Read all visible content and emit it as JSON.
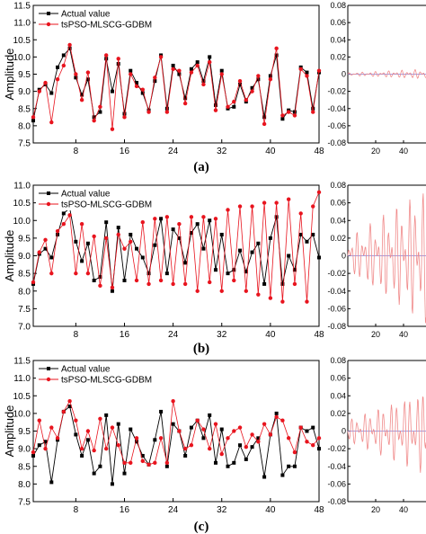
{
  "chart_data": [
    {
      "type": "line",
      "panel": "a",
      "caption": "(a)",
      "ylabel": "Amplitude",
      "xlim": [
        1,
        48
      ],
      "ylim": [
        7.5,
        11.5
      ],
      "yticks": [
        "7.5",
        "8.0",
        "8.5",
        "9.0",
        "9.5",
        "10.0",
        "10.5",
        "11.0",
        "11.5"
      ],
      "xticks": [
        "8",
        "16",
        "24",
        "32",
        "40",
        "48"
      ],
      "legend": "top-left",
      "series": [
        {
          "name": "Actual value",
          "color": "#000000",
          "marker": "square",
          "values": [
            8.15,
            9.05,
            9.2,
            8.95,
            9.7,
            10.05,
            10.25,
            9.4,
            8.9,
            9.35,
            8.25,
            8.4,
            9.95,
            9.0,
            9.8,
            8.35,
            9.6,
            9.25,
            8.95,
            8.45,
            9.3,
            10.05,
            8.5,
            9.75,
            9.5,
            8.8,
            9.65,
            9.85,
            9.3,
            10.0,
            8.6,
            9.6,
            8.5,
            8.55,
            9.2,
            8.7,
            9.1,
            9.35,
            8.25,
            9.45,
            10.05,
            8.2,
            8.45,
            8.4,
            9.7,
            9.55,
            8.5,
            9.55
          ]
        },
        {
          "name": "tsPSO-MLSCG-GDBM",
          "color": "#e8141e",
          "marker": "circle",
          "values": [
            8.25,
            9.0,
            9.25,
            8.1,
            9.35,
            9.75,
            10.35,
            9.5,
            8.75,
            9.55,
            8.15,
            8.55,
            10.05,
            7.9,
            9.95,
            8.25,
            9.5,
            9.15,
            9.05,
            8.4,
            9.4,
            10.0,
            8.4,
            9.65,
            9.6,
            8.65,
            9.55,
            9.75,
            9.2,
            9.85,
            8.45,
            9.5,
            8.55,
            8.7,
            9.3,
            8.75,
            9.0,
            9.45,
            8.05,
            9.35,
            10.25,
            8.3,
            8.4,
            8.3,
            9.65,
            9.45,
            8.4,
            9.6
          ]
        }
      ],
      "residual_panel": {
        "yticks": [
          "0.08",
          "0.06",
          "0.04",
          "0.02",
          "0",
          "-0.02",
          "-0.04",
          "-0.06",
          "-0.08"
        ],
        "ylim": [
          -0.08,
          0.08
        ],
        "xticks": [
          "20",
          "40"
        ],
        "amplitude": 0.006
      }
    },
    {
      "type": "line",
      "panel": "b",
      "caption": "(b)",
      "ylabel": "Amplitude",
      "xlim": [
        1,
        48
      ],
      "ylim": [
        7.0,
        11.0
      ],
      "yticks": [
        "7.0",
        "7.5",
        "8.0",
        "8.5",
        "9.0",
        "9.5",
        "10.0",
        "10.5",
        "11.0"
      ],
      "xticks": [
        "8",
        "16",
        "24",
        "32",
        "40",
        "48"
      ],
      "legend": "top-left",
      "series": [
        {
          "name": "Actual value",
          "color": "#000000",
          "marker": "square",
          "values": [
            8.2,
            9.05,
            9.2,
            8.95,
            9.6,
            10.2,
            10.35,
            9.4,
            8.85,
            9.35,
            8.3,
            8.4,
            9.95,
            8.0,
            9.8,
            8.3,
            9.6,
            9.2,
            8.95,
            8.5,
            9.3,
            10.05,
            8.5,
            9.75,
            9.5,
            8.8,
            9.65,
            9.9,
            9.2,
            10.0,
            8.6,
            9.6,
            8.5,
            8.6,
            9.15,
            8.55,
            9.1,
            9.35,
            8.2,
            9.5,
            10.1,
            8.2,
            9.0,
            8.6,
            9.6,
            9.4,
            9.6,
            8.95
          ]
        },
        {
          "name": "tsPSO-MLSCG-GDBM",
          "color": "#e8141e",
          "marker": "circle",
          "values": [
            8.25,
            9.1,
            9.45,
            8.5,
            9.7,
            9.9,
            10.15,
            8.5,
            9.9,
            8.5,
            9.55,
            8.15,
            9.5,
            8.1,
            9.6,
            9.2,
            9.4,
            8.3,
            9.95,
            8.2,
            10.05,
            8.3,
            10.1,
            8.2,
            9.9,
            8.2,
            10.1,
            8.0,
            10.1,
            8.25,
            10.05,
            8.0,
            10.3,
            8.3,
            10.4,
            8.0,
            10.4,
            7.9,
            10.5,
            7.8,
            10.5,
            7.7,
            10.6,
            8.2,
            10.2,
            7.7,
            10.4,
            10.8
          ]
        }
      ],
      "residual_panel": {
        "yticks": [
          "0.08",
          "0.06",
          "0.04",
          "0.02",
          "0",
          "-0.02",
          "-0.04",
          "-0.06",
          "-0.08"
        ],
        "ylim": [
          -0.08,
          0.08
        ],
        "xticks": [
          "20",
          "40"
        ],
        "amplitude": 0.08
      }
    },
    {
      "type": "line",
      "panel": "c",
      "caption": "(c)",
      "ylabel": "Amplitude",
      "xlim": [
        1,
        48
      ],
      "ylim": [
        7.5,
        11.5
      ],
      "yticks": [
        "7.5",
        "8.0",
        "8.5",
        "9.0",
        "9.5",
        "10.0",
        "10.5",
        "11.0",
        "11.5"
      ],
      "xticks": [
        "8",
        "16",
        "24",
        "32",
        "40",
        "48"
      ],
      "legend": "top-left",
      "series": [
        {
          "name": "Actual value",
          "color": "#000000",
          "marker": "square",
          "values": [
            8.8,
            9.1,
            9.2,
            8.05,
            9.25,
            10.05,
            10.2,
            9.4,
            8.8,
            9.25,
            8.3,
            8.5,
            9.95,
            8.0,
            9.7,
            8.3,
            9.55,
            9.2,
            8.8,
            8.55,
            9.25,
            10.05,
            8.5,
            9.7,
            9.5,
            8.8,
            9.6,
            9.8,
            9.3,
            9.95,
            8.6,
            9.55,
            8.5,
            8.6,
            9.1,
            8.7,
            9.05,
            9.3,
            8.2,
            9.4,
            10.0,
            8.25,
            8.5,
            8.5,
            9.6,
            9.5,
            9.6,
            9.0
          ]
        },
        {
          "name": "tsPSO-MLSCG-GDBM",
          "color": "#e8141e",
          "marker": "circle",
          "values": [
            8.9,
            9.8,
            9.0,
            9.6,
            9.3,
            10.05,
            10.35,
            9.8,
            9.0,
            9.5,
            8.95,
            9.85,
            9.0,
            9.6,
            9.1,
            8.6,
            8.6,
            9.3,
            8.65,
            8.55,
            8.6,
            9.3,
            8.6,
            10.35,
            9.5,
            9.0,
            9.1,
            9.8,
            9.55,
            9.0,
            9.7,
            8.85,
            9.3,
            9.5,
            9.6,
            9.05,
            9.4,
            9.2,
            9.7,
            9.4,
            9.9,
            9.8,
            9.3,
            8.9,
            9.6,
            9.2,
            9.1,
            9.3
          ]
        }
      ],
      "residual_panel": {
        "yticks": [
          "0.08",
          "0.06",
          "0.04",
          "0.02",
          "0",
          "-0.02",
          "-0.04",
          "-0.06",
          "-0.08"
        ],
        "ylim": [
          -0.08,
          0.08
        ],
        "xticks": [
          "20",
          "40"
        ],
        "amplitude": 0.05
      }
    }
  ]
}
